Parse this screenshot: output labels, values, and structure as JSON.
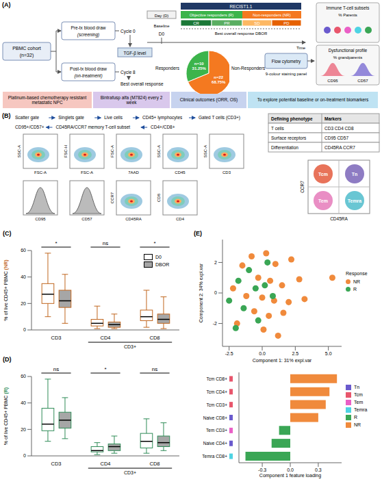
{
  "panel_a": {
    "letter": "(A)",
    "cohort": [
      "PBMC cohort",
      "(n=32)"
    ],
    "pre": "Pre-tx blood draw",
    "pre_note": "(screening)",
    "post": "Post-tx blood draw",
    "post_note": "(on-treatment)",
    "cycle_pre": "Cycle 0",
    "cycle_post": "Cycle 8",
    "tgf": "TGF-β level",
    "bor": "Best overall response",
    "day": "Day (D)",
    "baseline": "Baseline",
    "d0": "D0",
    "recist": "RECIST1.1",
    "responders": "Objective responders (R)",
    "nonresponders": "Non-responders (NR)",
    "stages": [
      "CR",
      "PR",
      "SD",
      "PD"
    ],
    "bor_axis": "Best overall response DBOR",
    "time": "Time",
    "flow": "Flow cytometry",
    "flow_note": "9-colour staining panel",
    "subsets": "Immune T-cell subsets",
    "parents": "% Parents",
    "dysfunction": "Dysfunctional profile",
    "grandparents": "% grandparents",
    "markers": [
      "CD95",
      "CD57"
    ],
    "banners": [
      "Platinum-based chemotherapy resistant metastatic NPC",
      "Bintrafusp alfa (M7824) every 2 week",
      "Clinical outcomes (ORR, OS)",
      "To explore potential baseline or on-treatment biomarkers"
    ]
  },
  "panel_b": {
    "letter": "(B)",
    "gates": [
      "Scatter gate",
      "Singlets gate",
      "Live cells",
      "CD45+ lymphocytes",
      "Gated T cells (CD3+)"
    ],
    "gates_2": [
      "CD4+/CD8+",
      "CD45RA/CCR7 memory T-cell subset",
      "CD95+/CD57+"
    ],
    "plots_1": [
      {
        "x": "FSC-A",
        "y": "SSC-A",
        "type": "dot"
      },
      {
        "x": "FSC-A",
        "y": "FSC-H",
        "type": "dot"
      },
      {
        "x": "7AAD",
        "y": "FSC-A",
        "type": "dot"
      },
      {
        "x": "CD45",
        "y": "SSC-A",
        "type": "dot"
      },
      {
        "x": "CD3",
        "y": "SSC-A",
        "type": "dot"
      }
    ],
    "plots_2": [
      {
        "x": "CD95",
        "type": "histogram"
      },
      {
        "x": "CD57",
        "type": "histogram"
      },
      {
        "x": "CD45RA",
        "y": "CCR7",
        "type": "dot"
      },
      {
        "x": "CD4",
        "y": "CD8",
        "type": "dot"
      }
    ],
    "table": {
      "header": [
        "Defining phenotype",
        "Markers"
      ],
      "rows": [
        [
          "T cells",
          "CD3  CD4  CD8"
        ],
        [
          "Surface receptors",
          "CD95  CD57"
        ],
        [
          "Differentiation",
          "CD45RA  CCR7"
        ]
      ]
    },
    "quadrant": {
      "x": "CD45RA",
      "y": "CCR7",
      "cells": [
        "Tcm",
        "Tn",
        "Tem",
        "Temra"
      ]
    }
  },
  "chart_data": [
    {
      "type": "pie",
      "categories": [
        "Responders",
        "Non-Responders"
      ],
      "values": [
        31.25,
        68.75
      ],
      "value_labels": [
        "31.25%",
        "68.75%"
      ],
      "slice_labels": [
        "n=10",
        "n=22"
      ],
      "colors": [
        "#3cb44b",
        "#f47920"
      ],
      "data_labels": true
    },
    {
      "type": "box",
      "panel": "(C)",
      "categories": [
        "CD3",
        "CD4",
        "CD8"
      ],
      "groups": [
        null,
        "CD3+",
        "CD3+"
      ],
      "significance": [
        "*",
        "ns",
        "*"
      ],
      "ylabel": "% of live CD45+ PBMC",
      "ylabel_group": "(NR)",
      "color": "#c0661e",
      "ylim": [
        0,
        60
      ],
      "yticks": [
        0,
        20,
        40,
        60
      ],
      "legend": "upper right",
      "series": [
        {
          "name": "D0",
          "color": "#ffffff",
          "values": [
            {
              "min": 10,
              "q1": 20,
              "median": 27,
              "q3": 35,
              "max": 58
            },
            {
              "min": 1,
              "q1": 3,
              "median": 5,
              "q3": 8,
              "max": 18
            },
            {
              "min": 2,
              "q1": 7,
              "median": 10,
              "q3": 15,
              "max": 30
            }
          ]
        },
        {
          "name": "DBOR",
          "color": "#a6a6a6",
          "values": [
            {
              "min": 5,
              "q1": 17,
              "median": 22,
              "q3": 30,
              "max": 42
            },
            {
              "min": 1,
              "q1": 2,
              "median": 4,
              "q3": 6,
              "max": 12
            },
            {
              "min": 1,
              "q1": 5,
              "median": 8,
              "q3": 12,
              "max": 25
            }
          ]
        }
      ]
    },
    {
      "type": "box",
      "panel": "(D)",
      "categories": [
        "CD3",
        "CD4",
        "CD8"
      ],
      "groups": [
        null,
        "CD3+",
        "CD3+"
      ],
      "significance": [
        "ns",
        "*",
        "ns"
      ],
      "ylabel": "% of live CD45+ PBMC",
      "ylabel_group": "(R)",
      "color": "#2e8b57",
      "ylim": [
        0,
        60
      ],
      "yticks": [
        0,
        20,
        40,
        60
      ],
      "series": [
        {
          "name": "D0",
          "color": "#ffffff",
          "values": [
            {
              "min": 11,
              "q1": 19,
              "median": 24,
              "q3": 36,
              "max": 58
            },
            {
              "min": 1,
              "q1": 3,
              "median": 4,
              "q3": 7,
              "max": 10
            },
            {
              "min": 2,
              "q1": 6,
              "median": 11,
              "q3": 17,
              "max": 28
            }
          ]
        },
        {
          "name": "DBOR",
          "color": "#a6a6a6",
          "values": [
            {
              "min": 13,
              "q1": 21,
              "median": 27,
              "q3": 33,
              "max": 44
            },
            {
              "min": 2,
              "q1": 4,
              "median": 7,
              "q3": 9,
              "max": 15
            },
            {
              "min": 4,
              "q1": 7,
              "median": 10,
              "q3": 15,
              "max": 25
            }
          ]
        }
      ]
    },
    {
      "type": "scatter",
      "panel": "(E)",
      "xlabel": "Component 1: 31% expl.var",
      "ylabel": "Component 2: 34% expl.var",
      "xlim": [
        -3,
        6
      ],
      "xticks": [
        -2.5,
        {
          "value": 0,
          "label": "0.0"
        },
        2.5,
        {
          "value": 5,
          "label": "5.0"
        }
      ],
      "ylim": [
        -3.5,
        3.5
      ],
      "yticks": [
        -2,
        0,
        2
      ],
      "legend": "right",
      "legend_title": "Response",
      "series": [
        {
          "name": "NR",
          "color": "#f08a3c",
          "x": [
            -2.2,
            -1.5,
            -0.8,
            0.3,
            1.0,
            2.2,
            -0.3,
            0.6,
            1.5,
            2.8,
            5.3,
            -1.2,
            0.0,
            0.9,
            2.0,
            3.2,
            -0.6,
            0.5,
            1.6,
            -1.9,
            0.1,
            1.2
          ],
          "y": [
            0.3,
            1.8,
            2.4,
            2.6,
            1.9,
            2.2,
            1.0,
            0.8,
            0.5,
            0.9,
            1.0,
            -0.2,
            -0.3,
            -0.5,
            -0.6,
            -0.4,
            -1.2,
            -1.5,
            -1.3,
            -2.0,
            -2.4,
            -2.8
          ]
        },
        {
          "name": "R",
          "color": "#3aa655",
          "x": [
            -2.5,
            -1.8,
            -1.0,
            -0.5,
            0.2,
            -1.4,
            -0.3,
            0.8,
            -2.0,
            0.4
          ],
          "y": [
            -0.5,
            0.8,
            1.5,
            0.3,
            0.5,
            -1.0,
            -1.8,
            -0.2,
            -2.3,
            2.0
          ]
        }
      ]
    },
    {
      "type": "bar",
      "orientation": "horizontal",
      "xlabel": "Component 1 feature loading",
      "categories": [
        "Tcm CD8+",
        "Tcm CD4+",
        "Tcm CD3+",
        "Naive CD8+",
        "Tem CD3+",
        "Naive CD4+",
        "Temra CD8+"
      ],
      "subsets": [
        "Tcm",
        "Tcm",
        "Tcm",
        "Tn",
        "Tem",
        "Tn",
        "Temra"
      ],
      "values": [
        0.5,
        0.42,
        0.38,
        0.3,
        -0.12,
        -0.2,
        -0.48
      ],
      "colors": [
        "#f08a3c",
        "#f08a3c",
        "#f08a3c",
        "#f08a3c",
        "#3aa655",
        "#3aa655",
        "#3aa655"
      ],
      "xlim": [
        -0.55,
        0.55
      ],
      "xticks": [
        -0.3,
        {
          "value": 0,
          "label": "0.0"
        },
        0.3
      ],
      "legend": "right",
      "legend_entries": [
        {
          "name": "Tn",
          "color": "#6a5acd"
        },
        {
          "name": "Tcm",
          "color": "#e8566c"
        },
        {
          "name": "Tem",
          "color": "#ea5fc6"
        },
        {
          "name": "Temra",
          "color": "#4ed3e3"
        },
        {
          "name": "R",
          "color": "#3aa655"
        },
        {
          "name": "NR",
          "color": "#f08a3c"
        }
      ]
    }
  ]
}
